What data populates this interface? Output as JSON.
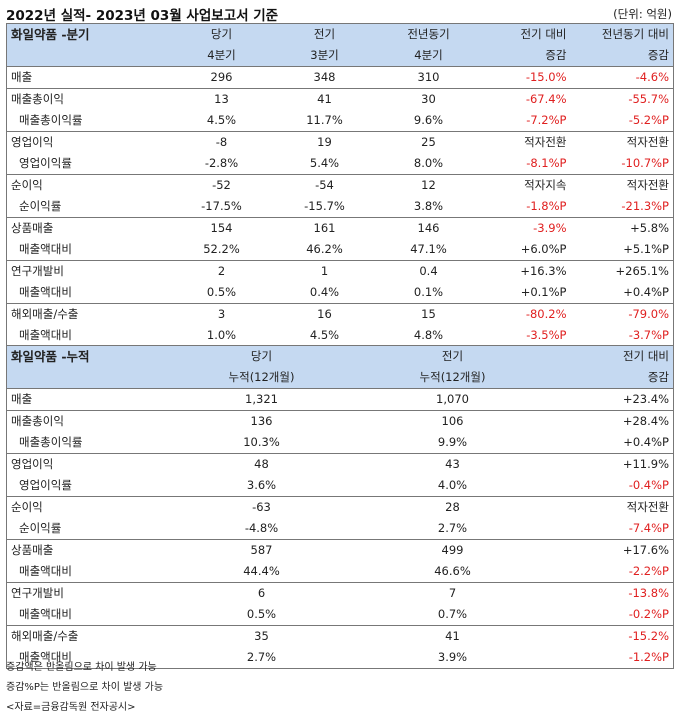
{
  "header": {
    "title": "2022년 실적- 2023년 03월 사업보고서 기준",
    "unit": "(단위: 억원)"
  },
  "quarterly": {
    "section_title": "화일약품 -분기",
    "columns": [
      {
        "line1": "당기",
        "line2": "4분기"
      },
      {
        "line1": "전기",
        "line2": "3분기"
      },
      {
        "line1": "전년동기",
        "line2": "4분기"
      },
      {
        "line1": "전기 대비",
        "line2": "증감"
      },
      {
        "line1": "전년동기 대비",
        "line2": "증감"
      }
    ],
    "groups": [
      {
        "rows": [
          {
            "label": "매출",
            "indent": false,
            "values": [
              "296",
              "348",
              "310",
              "-15.0%",
              "-4.6%"
            ],
            "red": [
              false,
              false,
              false,
              true,
              true
            ]
          }
        ]
      },
      {
        "rows": [
          {
            "label": "매출총이익",
            "indent": false,
            "values": [
              "13",
              "41",
              "30",
              "-67.4%",
              "-55.7%"
            ],
            "red": [
              false,
              false,
              false,
              true,
              true
            ]
          },
          {
            "label": "매출총이익률",
            "indent": true,
            "values": [
              "4.5%",
              "11.7%",
              "9.6%",
              "-7.2%P",
              "-5.2%P"
            ],
            "red": [
              false,
              false,
              false,
              true,
              true
            ]
          }
        ]
      },
      {
        "rows": [
          {
            "label": "영업이익",
            "indent": false,
            "values": [
              "-8",
              "19",
              "25",
              "적자전환",
              "적자전환"
            ],
            "red": [
              false,
              false,
              false,
              false,
              false
            ]
          },
          {
            "label": "영업이익률",
            "indent": true,
            "values": [
              "-2.8%",
              "5.4%",
              "8.0%",
              "-8.1%P",
              "-10.7%P"
            ],
            "red": [
              false,
              false,
              false,
              true,
              true
            ]
          }
        ]
      },
      {
        "rows": [
          {
            "label": "순이익",
            "indent": false,
            "values": [
              "-52",
              "-54",
              "12",
              "적자지속",
              "적자전환"
            ],
            "red": [
              false,
              false,
              false,
              false,
              false
            ]
          },
          {
            "label": "순이익률",
            "indent": true,
            "values": [
              "-17.5%",
              "-15.7%",
              "3.8%",
              "-1.8%P",
              "-21.3%P"
            ],
            "red": [
              false,
              false,
              false,
              true,
              true
            ]
          }
        ]
      },
      {
        "rows": [
          {
            "label": "상품매출",
            "indent": false,
            "values": [
              "154",
              "161",
              "146",
              "-3.9%",
              "+5.8%"
            ],
            "red": [
              false,
              false,
              false,
              true,
              false
            ]
          },
          {
            "label": "매출액대비",
            "indent": true,
            "values": [
              "52.2%",
              "46.2%",
              "47.1%",
              "+6.0%P",
              "+5.1%P"
            ],
            "red": [
              false,
              false,
              false,
              false,
              false
            ]
          }
        ]
      },
      {
        "rows": [
          {
            "label": "연구개발비",
            "indent": false,
            "values": [
              "2",
              "1",
              "0.4",
              "+16.3%",
              "+265.1%"
            ],
            "red": [
              false,
              false,
              false,
              false,
              false
            ]
          },
          {
            "label": "매출액대비",
            "indent": true,
            "values": [
              "0.5%",
              "0.4%",
              "0.1%",
              "+0.1%P",
              "+0.4%P"
            ],
            "red": [
              false,
              false,
              false,
              false,
              false
            ]
          }
        ]
      },
      {
        "rows": [
          {
            "label": "해외매출/수출",
            "indent": false,
            "values": [
              "3",
              "16",
              "15",
              "-80.2%",
              "-79.0%"
            ],
            "red": [
              false,
              false,
              false,
              true,
              true
            ]
          },
          {
            "label": "매출액대비",
            "indent": true,
            "values": [
              "1.0%",
              "4.5%",
              "4.8%",
              "-3.5%P",
              "-3.7%P"
            ],
            "red": [
              false,
              false,
              false,
              true,
              true
            ]
          }
        ]
      }
    ]
  },
  "cumulative": {
    "section_title": "화일약품 -누적",
    "columns": [
      {
        "line1": "당기",
        "line2": "누적(12개월)"
      },
      {
        "line1": "전기",
        "line2": "누적(12개월)"
      },
      {
        "line1": "전기 대비",
        "line2": "증감"
      }
    ],
    "groups": [
      {
        "rows": [
          {
            "label": "매출",
            "indent": false,
            "values": [
              "1,321",
              "1,070",
              "+23.4%"
            ],
            "red": [
              false,
              false,
              false
            ]
          }
        ]
      },
      {
        "rows": [
          {
            "label": "매출총이익",
            "indent": false,
            "values": [
              "136",
              "106",
              "+28.4%"
            ],
            "red": [
              false,
              false,
              false
            ]
          },
          {
            "label": "매출총이익률",
            "indent": true,
            "values": [
              "10.3%",
              "9.9%",
              "+0.4%P"
            ],
            "red": [
              false,
              false,
              false
            ]
          }
        ]
      },
      {
        "rows": [
          {
            "label": "영업이익",
            "indent": false,
            "values": [
              "48",
              "43",
              "+11.9%"
            ],
            "red": [
              false,
              false,
              false
            ]
          },
          {
            "label": "영업이익률",
            "indent": true,
            "values": [
              "3.6%",
              "4.0%",
              "-0.4%P"
            ],
            "red": [
              false,
              false,
              true
            ]
          }
        ]
      },
      {
        "rows": [
          {
            "label": "순이익",
            "indent": false,
            "values": [
              "-63",
              "28",
              "적자전환"
            ],
            "red": [
              false,
              false,
              false
            ]
          },
          {
            "label": "순이익률",
            "indent": true,
            "values": [
              "-4.8%",
              "2.7%",
              "-7.4%P"
            ],
            "red": [
              false,
              false,
              true
            ]
          }
        ]
      },
      {
        "rows": [
          {
            "label": "상품매출",
            "indent": false,
            "values": [
              "587",
              "499",
              "+17.6%"
            ],
            "red": [
              false,
              false,
              false
            ]
          },
          {
            "label": "매출액대비",
            "indent": true,
            "values": [
              "44.4%",
              "46.6%",
              "-2.2%P"
            ],
            "red": [
              false,
              false,
              true
            ]
          }
        ]
      },
      {
        "rows": [
          {
            "label": "연구개발비",
            "indent": false,
            "values": [
              "6",
              "7",
              "-13.8%"
            ],
            "red": [
              false,
              false,
              true
            ]
          },
          {
            "label": "매출액대비",
            "indent": true,
            "values": [
              "0.5%",
              "0.7%",
              "-0.2%P"
            ],
            "red": [
              false,
              false,
              true
            ]
          }
        ]
      },
      {
        "rows": [
          {
            "label": "해외매출/수출",
            "indent": false,
            "values": [
              "35",
              "41",
              "-15.2%"
            ],
            "red": [
              false,
              false,
              true
            ]
          },
          {
            "label": "매출액대비",
            "indent": true,
            "values": [
              "2.7%",
              "3.9%",
              "-1.2%P"
            ],
            "red": [
              false,
              false,
              true
            ]
          }
        ]
      }
    ]
  },
  "notes": [
    "증감액은 반올림으로 차이 발생 가능",
    "증감%P는 반올림으로 차이 발생 가능",
    "<자료=금융감독원 전자공시>"
  ],
  "colors": {
    "header_bg": "#c5d9f1",
    "negative": "#e02020",
    "border": "#777777"
  }
}
